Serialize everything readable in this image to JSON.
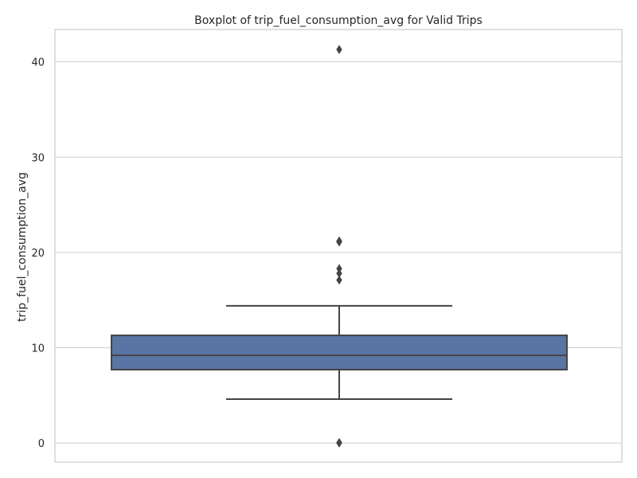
{
  "chart_data": {
    "type": "box",
    "title": "Boxplot of trip_fuel_consumption_avg for Valid Trips",
    "xlabel": "",
    "ylabel": "trip_fuel_consumption_avg",
    "ylim": [
      -2,
      43.4
    ],
    "yticks": [
      0,
      10,
      20,
      30,
      40
    ],
    "grid": true,
    "grid_axis": "y",
    "box": {
      "whisker_low": 4.6,
      "q1": 7.7,
      "median": 9.2,
      "q3": 11.3,
      "whisker_high": 14.4
    },
    "outliers": [
      41.3,
      21.2,
      21.1,
      18.3,
      17.8,
      17.1,
      0.0,
      0.05
    ],
    "colors": {
      "box_fill": "#5875a4",
      "line": "#444444",
      "grid": "#cccccc",
      "spine": "#cccccc"
    }
  }
}
